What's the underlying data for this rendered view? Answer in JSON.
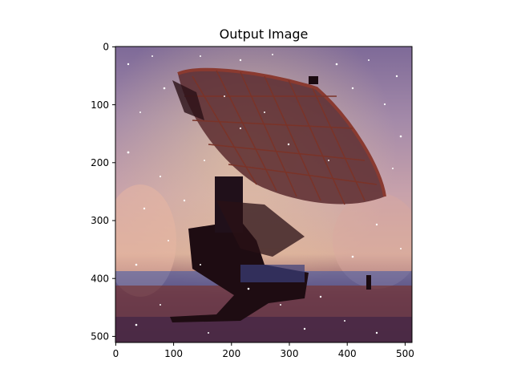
{
  "figure": {
    "title": "Output Image"
  },
  "image": {
    "subject": "radio-telescope-dish-stylized",
    "colors": {
      "sky_top": "#8a6f94",
      "sky_mid": "#c9a6b8",
      "sky_warm": "#e0b79a",
      "structure": "#2a1016",
      "dish_rim": "#7a2f2a",
      "ground": "#6a3a48",
      "blue_band": "#3b56a8",
      "sparkle": "#ffffff"
    }
  },
  "axes": {
    "x_ticks": [
      "0",
      "100",
      "200",
      "300",
      "400",
      "500"
    ],
    "y_ticks": [
      "0",
      "100",
      "200",
      "300",
      "400",
      "500"
    ]
  }
}
